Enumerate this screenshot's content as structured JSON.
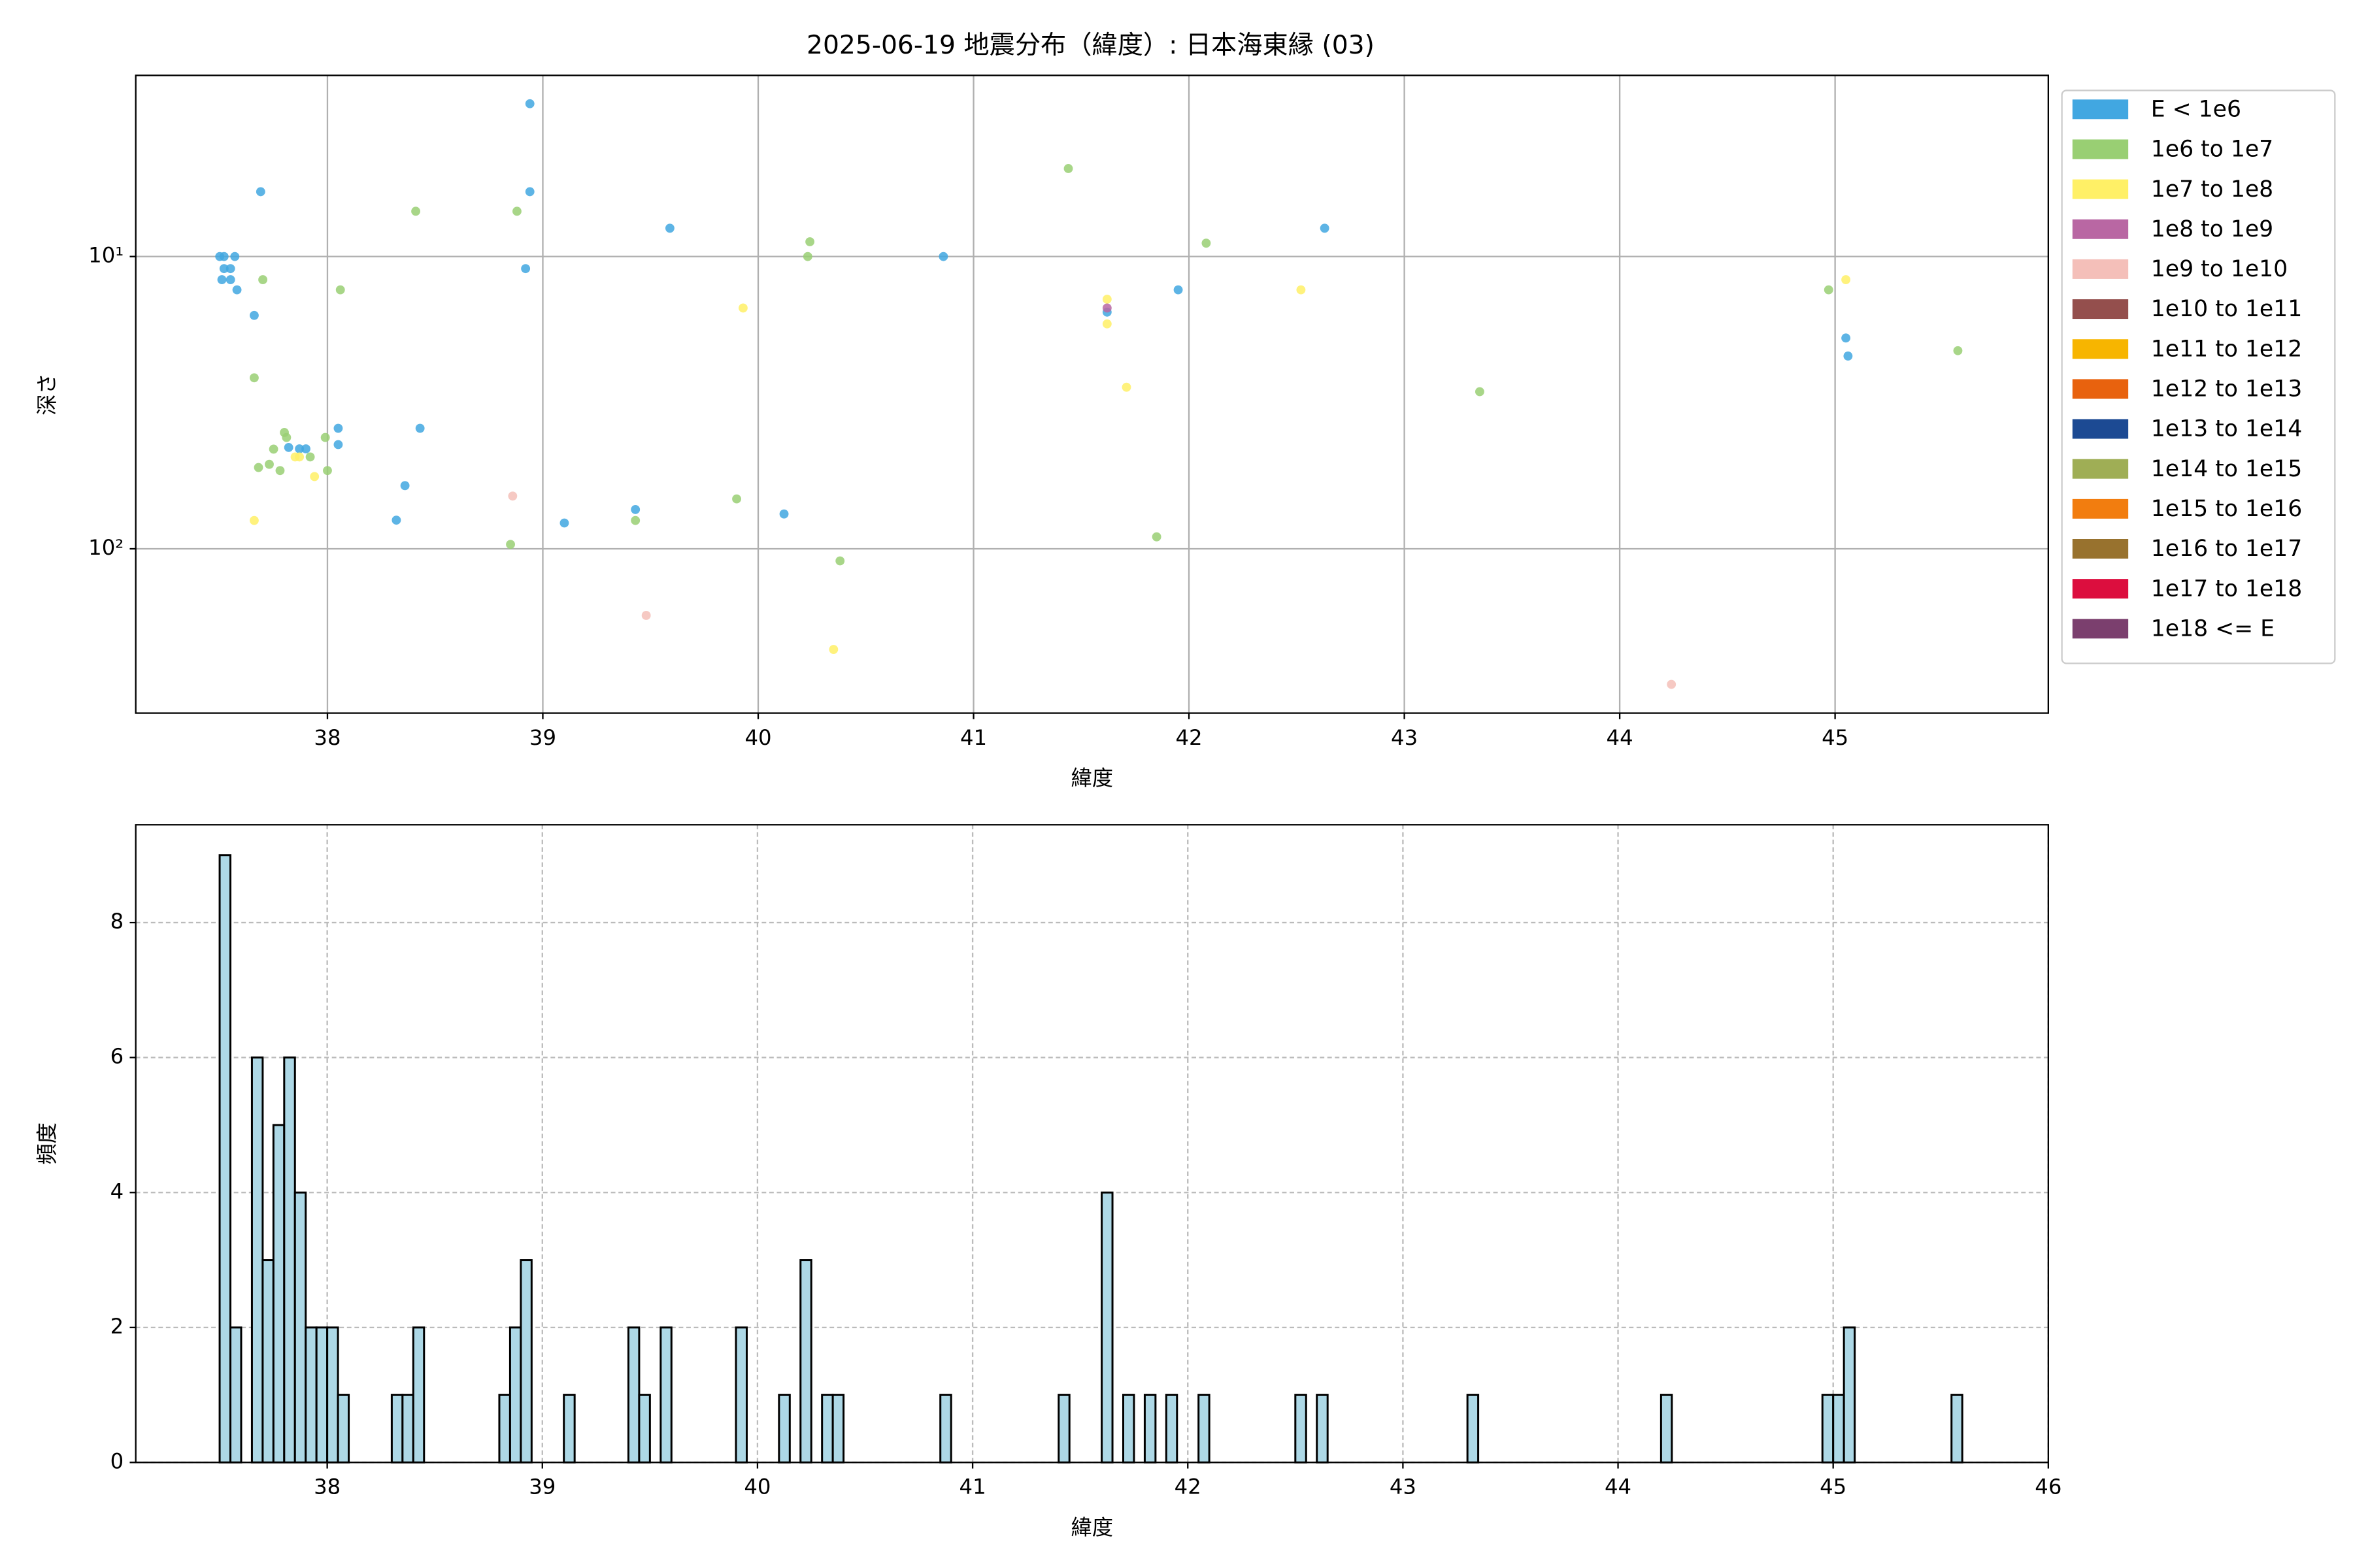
{
  "chart_data": [
    {
      "type": "scatter",
      "title": "2025-06-19 地震分布（緯度）: 日本海東縁 (03)",
      "xlabel": "緯度",
      "ylabel": "深さ",
      "xlim": [
        37.11,
        45.99
      ],
      "xticks": [
        38,
        39,
        40,
        41,
        42,
        43,
        44,
        45
      ],
      "ylim": [
        2.4,
        365
      ],
      "yscale": "log",
      "yinvert": true,
      "yticks": [
        {
          "value": 10,
          "label": "10¹"
        },
        {
          "value": 100,
          "label": "10²"
        }
      ],
      "grid": true,
      "grid_linestyle": "solid",
      "legend": "right",
      "series": [
        {
          "name": "E < 1e6",
          "color": "#41a7e1",
          "x": [
            37.5,
            37.52,
            37.57,
            37.52,
            37.55,
            37.51,
            37.55,
            37.58,
            37.69,
            37.66,
            38.94,
            38.94,
            38.92,
            39.59,
            40.86,
            42.63,
            41.95,
            38.05,
            38.05,
            38.43,
            38.36,
            37.82,
            37.87,
            37.9,
            38.32,
            39.1,
            39.43,
            40.12,
            41.62,
            45.05,
            45.06
          ],
          "values": [
            10,
            10,
            10,
            11,
            11,
            12,
            12,
            13,
            6,
            15.9,
            3,
            6,
            11,
            8,
            10,
            8,
            13,
            38.7,
            44,
            38.7,
            60.8,
            45,
            45.5,
            45.5,
            79.8,
            81.6,
            73.4,
            76,
            15.5,
            19,
            21.9
          ]
        },
        {
          "name": "1e6 to 1e7",
          "color": "#99cf73",
          "x": [
            37.7,
            38.06,
            38.41,
            38.88,
            41.44,
            40.24,
            40.23,
            42.08,
            37.66,
            43.35,
            45.57,
            44.97,
            37.68,
            37.73,
            37.75,
            37.78,
            37.8,
            37.81,
            37.99,
            38.0,
            37.92,
            38.85,
            39.43,
            39.9,
            40.38,
            41.85
          ],
          "values": [
            12,
            13,
            7,
            7,
            5,
            8.9,
            10,
            9,
            26,
            29,
            21,
            13,
            52.7,
            51.4,
            45.6,
            54,
            40,
            41.6,
            41.6,
            54,
            48.5,
            96.6,
            80,
            67.5,
            110,
            91
          ]
        },
        {
          "name": "1e7 to 1e8",
          "color": "#fff066",
          "x": [
            37.66,
            37.94,
            37.85,
            37.87,
            39.93,
            40.35,
            41.62,
            41.62,
            41.71,
            42.52,
            45.05
          ],
          "values": [
            80,
            56.6,
            48.5,
            48.5,
            15,
            221,
            14,
            17,
            28,
            13,
            12
          ]
        },
        {
          "name": "1e8 to 1e9",
          "color": "#b967a3",
          "x": [
            41.62
          ],
          "values": [
            15
          ]
        },
        {
          "name": "1e9 to 1e10",
          "color": "#f4bfb9",
          "x": [
            38.86,
            39.48,
            44.24
          ],
          "values": [
            66,
            169,
            291
          ]
        },
        {
          "name": "1e10 to 1e11",
          "color": "#944f4d",
          "x": [],
          "values": []
        },
        {
          "name": "1e11 to 1e12",
          "color": "#f7b500",
          "x": [],
          "values": []
        },
        {
          "name": "1e12 to 1e13",
          "color": "#e8620e",
          "x": [],
          "values": []
        },
        {
          "name": "1e13 to 1e14",
          "color": "#1c4a93",
          "x": [],
          "values": []
        },
        {
          "name": "1e14 to 1e15",
          "color": "#9fae55",
          "x": [],
          "values": []
        },
        {
          "name": "1e15 to 1e16",
          "color": "#f27d0f",
          "x": [],
          "values": []
        },
        {
          "name": "1e16 to 1e17",
          "color": "#98722e",
          "x": [],
          "values": []
        },
        {
          "name": "1e17 to 1e18",
          "color": "#dc0e3e",
          "x": [],
          "values": []
        },
        {
          "name": "1e18 <= E",
          "color": "#7b3f6e",
          "x": [],
          "values": []
        }
      ]
    },
    {
      "type": "histogram",
      "xlabel": "緯度",
      "ylabel": "頻度",
      "color": "#add8e6",
      "edgecolor": "#000000",
      "xlim": [
        37.11,
        46.0
      ],
      "xticks": [
        38,
        39,
        40,
        41,
        42,
        43,
        44,
        45,
        46
      ],
      "ylim": [
        0,
        9.45
      ],
      "yticks": [
        0,
        2,
        4,
        6,
        8
      ],
      "grid": true,
      "grid_linestyle": "dashed",
      "bins": [
        37.5,
        37.55,
        37.6,
        37.65,
        37.7,
        37.75,
        37.8,
        37.85,
        37.9,
        37.95,
        38.0,
        38.05,
        38.1,
        38.3,
        38.35,
        38.4,
        38.45,
        38.8,
        38.85,
        38.9,
        38.95,
        39.1,
        39.15,
        39.4,
        39.45,
        39.5,
        39.55,
        39.6,
        39.9,
        39.95,
        40.1,
        40.15,
        40.2,
        40.25,
        40.3,
        40.35,
        40.4,
        40.85,
        40.9,
        41.4,
        41.45,
        41.6,
        41.65,
        41.7,
        41.75,
        41.8,
        41.85,
        41.9,
        41.95,
        42.05,
        42.1,
        42.5,
        42.55,
        42.6,
        42.65,
        43.3,
        43.35,
        44.2,
        44.25,
        44.95,
        45.0,
        45.05,
        45.1,
        45.55,
        45.6
      ],
      "values": [
        9,
        2,
        0,
        6,
        3,
        5,
        6,
        4,
        2,
        2,
        2,
        1,
        0,
        1,
        1,
        2,
        0,
        1,
        2,
        3,
        0,
        1,
        0,
        2,
        1,
        0,
        2,
        0,
        2,
        0,
        1,
        0,
        3,
        0,
        1,
        1,
        0,
        1,
        0,
        1,
        0,
        4,
        0,
        1,
        0,
        1,
        0,
        1,
        0,
        1,
        0,
        1,
        0,
        1,
        0,
        1,
        0,
        1,
        0,
        1,
        1,
        2,
        0,
        1
      ]
    }
  ]
}
